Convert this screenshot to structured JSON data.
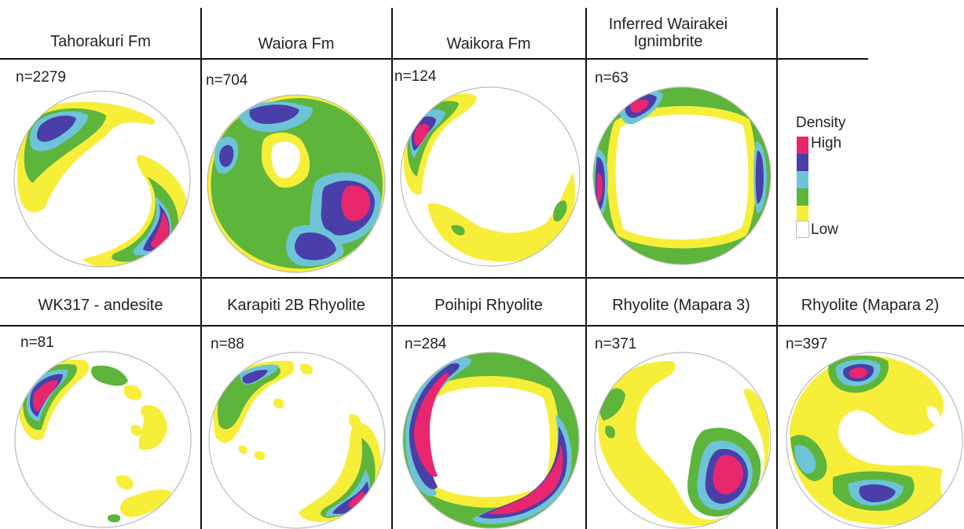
{
  "legend": {
    "title": "Density",
    "high_label": "High",
    "low_label": "Low",
    "colors": [
      "#e8266e",
      "#4a3fa8",
      "#6dc4d8",
      "#5db53c",
      "#f7ee3a",
      "#ffffff"
    ]
  },
  "top_row": {
    "titles": [
      "Tahorakuri Fm",
      "Waiora Fm",
      "Waikora Fm",
      "Inferred Wairakei Ignimbrite"
    ],
    "counts": [
      "n=2279",
      "n=704",
      "n=124",
      "n=63"
    ]
  },
  "bottom_row": {
    "titles": [
      "WK317 - andesite",
      "Karapiti 2B Rhyolite",
      "Poihipi Rhyolite",
      "Rhyolite (Mapara 3)",
      "Rhyolite (Mapara 2)"
    ],
    "counts": [
      "n=81",
      "n=88",
      "n=284",
      "n=371",
      "n=397"
    ]
  }
}
